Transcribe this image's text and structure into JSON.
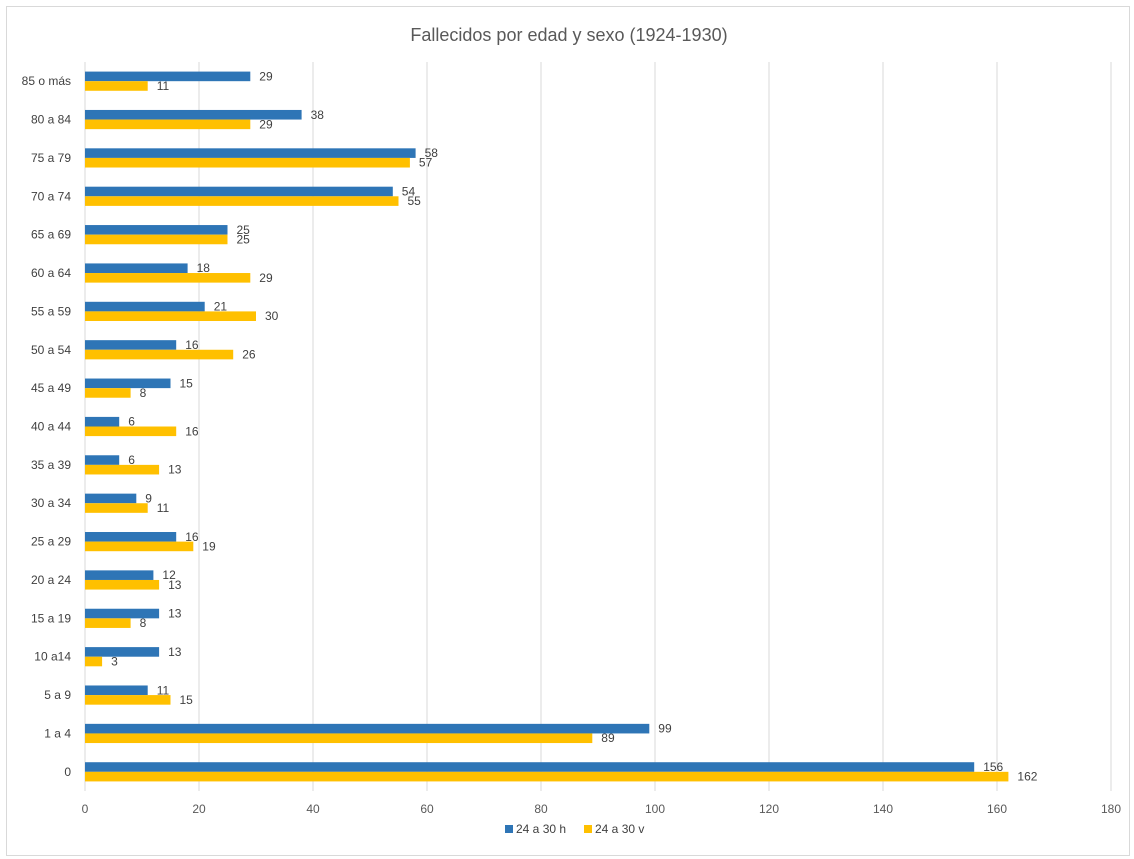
{
  "chart_data": {
    "type": "bar",
    "orientation": "horizontal",
    "title": "Fallecidos por edad y sexo (1924-1930)",
    "categories": [
      "0",
      "1 a 4",
      "5 a 9",
      "10 a14",
      "15 a 19",
      "20 a 24",
      "25 a 29",
      "30 a 34",
      "35 a 39",
      "40 a 44",
      "45 a 49",
      "50 a 54",
      "55 a 59",
      "60 a 64",
      "65 a 69",
      "70 a 74",
      "75 a 79",
      "80 a 84",
      "85 o más"
    ],
    "series": [
      {
        "name": "24 a 30 h",
        "color": "#2e75b6",
        "values": [
          156,
          99,
          11,
          13,
          13,
          12,
          16,
          9,
          6,
          6,
          15,
          16,
          21,
          18,
          25,
          54,
          58,
          38,
          29
        ]
      },
      {
        "name": "24 a 30 v",
        "color": "#ffc000",
        "values": [
          162,
          89,
          15,
          3,
          8,
          13,
          19,
          11,
          13,
          16,
          8,
          26,
          30,
          29,
          25,
          55,
          57,
          29,
          11
        ]
      }
    ],
    "xlim": [
      0,
      180
    ],
    "xticks": [
      0,
      20,
      40,
      60,
      80,
      100,
      120,
      140,
      160,
      180
    ],
    "grid": true,
    "legend_position": "bottom",
    "data_labels": true
  }
}
